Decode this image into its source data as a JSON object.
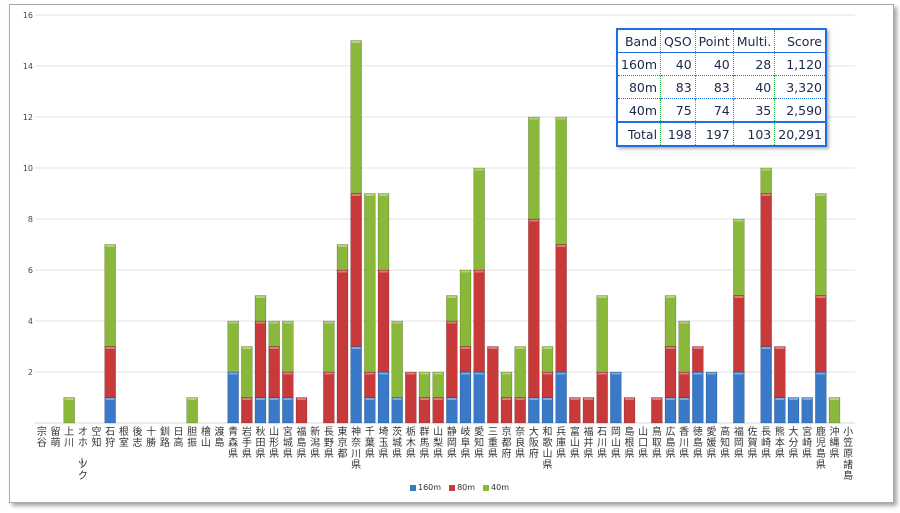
{
  "chart_data": {
    "type": "bar",
    "stacked": true,
    "title": "",
    "xlabel": "",
    "ylabel": "",
    "ylim": [
      0,
      16
    ],
    "yticks": [
      2,
      4,
      6,
      8,
      10,
      12,
      14,
      16
    ],
    "grid": true,
    "legend_position": "bottom",
    "categories": [
      "宗谷",
      "留萌",
      "上川",
      "オホーツク",
      "空知",
      "石狩",
      "根室",
      "後志",
      "十勝",
      "釧路",
      "日高",
      "胆振",
      "檜山",
      "渡島",
      "青森県",
      "岩手県",
      "秋田県",
      "山形県",
      "宮城県",
      "福島県",
      "新潟県",
      "長野県",
      "東京都",
      "神奈川県",
      "千葉県",
      "埼玉県",
      "茨城県",
      "栃木県",
      "群馬県",
      "山梨県",
      "静岡県",
      "岐阜県",
      "愛知県",
      "三重県",
      "京都府",
      "奈良県",
      "大阪府",
      "和歌山県",
      "兵庫県",
      "富山県",
      "福井県",
      "石川県",
      "岡山県",
      "島根県",
      "山口県",
      "鳥取県",
      "広島県",
      "香川県",
      "徳島県",
      "愛媛県",
      "高知県",
      "福岡県",
      "佐賀県",
      "長崎県",
      "熊本県",
      "大分県",
      "宮崎県",
      "鹿児島県",
      "沖縄県",
      "小笠原諸島"
    ],
    "series": [
      {
        "name": "160m",
        "color": "#3a78c8",
        "values": [
          0,
          0,
          0,
          0,
          0,
          1,
          0,
          0,
          0,
          0,
          0,
          0,
          0,
          0,
          2,
          0,
          1,
          1,
          1,
          0,
          0,
          0,
          0,
          3,
          1,
          2,
          1,
          0,
          0,
          0,
          1,
          2,
          2,
          0,
          0,
          0,
          1,
          1,
          2,
          0,
          0,
          0,
          2,
          0,
          0,
          0,
          1,
          1,
          2,
          2,
          0,
          2,
          0,
          3,
          1,
          1,
          1,
          2,
          0,
          0
        ]
      },
      {
        "name": "80m",
        "color": "#c83a3a",
        "values": [
          0,
          0,
          0,
          0,
          0,
          2,
          0,
          0,
          0,
          0,
          0,
          0,
          0,
          0,
          0,
          1,
          3,
          2,
          1,
          1,
          0,
          2,
          6,
          6,
          1,
          4,
          0,
          2,
          1,
          1,
          3,
          1,
          4,
          3,
          1,
          1,
          7,
          1,
          5,
          1,
          1,
          2,
          0,
          1,
          0,
          1,
          2,
          1,
          1,
          0,
          0,
          3,
          0,
          6,
          2,
          0,
          0,
          3,
          0,
          0
        ]
      },
      {
        "name": "40m",
        "color": "#8ab83a",
        "values": [
          0,
          0,
          1,
          0,
          0,
          4,
          0,
          0,
          0,
          0,
          0,
          1,
          0,
          0,
          2,
          2,
          1,
          1,
          2,
          0,
          0,
          2,
          1,
          6,
          7,
          3,
          3,
          0,
          1,
          1,
          1,
          3,
          4,
          0,
          1,
          2,
          4,
          1,
          5,
          0,
          0,
          3,
          0,
          0,
          0,
          0,
          2,
          2,
          0,
          0,
          0,
          3,
          0,
          1,
          0,
          0,
          0,
          4,
          1,
          0
        ]
      }
    ]
  },
  "score_table": {
    "headers": [
      "Band",
      "QSO",
      "Point",
      "Multi.",
      "Score"
    ],
    "rows": [
      [
        "160m",
        "40",
        "40",
        "28",
        "1,120"
      ],
      [
        "80m",
        "83",
        "83",
        "40",
        "3,320"
      ],
      [
        "40m",
        "75",
        "74",
        "35",
        "2,590"
      ]
    ],
    "total": [
      "Total",
      "198",
      "197",
      "103",
      "20,291"
    ]
  }
}
